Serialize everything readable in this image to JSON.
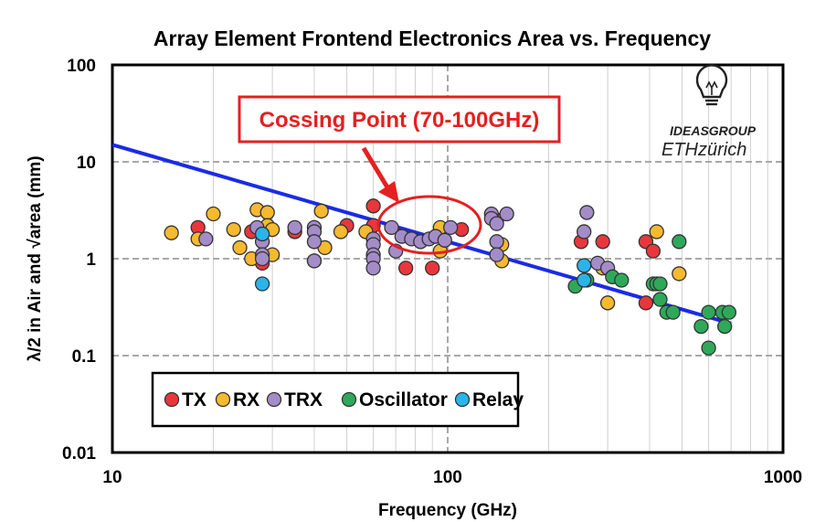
{
  "colors": {
    "TX": "#e8373c",
    "RX": "#f6b92f",
    "TRX": "#a48cc8",
    "Oscillator": "#2fa85a",
    "Relay": "#2ab4ea",
    "trend_line": "#1a2be6",
    "annotation": "#e52020"
  },
  "chart_data": {
    "type": "scatter",
    "title": "Array Element Frontend Electronics Area vs. Frequency",
    "xlabel": "Frequency (GHz)",
    "ylabel": "λ/2 in Air and √area (mm)",
    "x_scale": "log",
    "y_scale": "log",
    "xlim": [
      10,
      1000
    ],
    "ylim": [
      0.01,
      100
    ],
    "x_ticks": [
      10,
      100,
      1000
    ],
    "x_tick_labels": [
      "10",
      "100",
      "1000"
    ],
    "y_ticks": [
      0.01,
      0.1,
      1,
      10,
      100
    ],
    "y_tick_labels": [
      "0.01",
      "0.1",
      "1",
      "10",
      "100"
    ],
    "grid": true,
    "legend_position": "bottom-left",
    "series": [
      {
        "name": "TX",
        "points": [
          [
            18,
            2.1
          ],
          [
            26,
            1.9
          ],
          [
            28,
            1.0
          ],
          [
            28,
            0.9
          ],
          [
            35,
            1.9
          ],
          [
            50,
            2.2
          ],
          [
            60,
            3.5
          ],
          [
            60,
            2.2
          ],
          [
            75,
            0.8
          ],
          [
            90,
            0.8
          ],
          [
            110,
            2.0
          ],
          [
            140,
            1.1
          ],
          [
            140,
            2.5
          ],
          [
            250,
            1.5
          ],
          [
            290,
            1.5
          ],
          [
            390,
            1.5
          ],
          [
            390,
            0.35
          ],
          [
            410,
            1.2
          ]
        ]
      },
      {
        "name": "RX",
        "points": [
          [
            15,
            1.85
          ],
          [
            18,
            1.6
          ],
          [
            20,
            2.9
          ],
          [
            23,
            2.0
          ],
          [
            24,
            1.3
          ],
          [
            26,
            1.0
          ],
          [
            27,
            3.2
          ],
          [
            29,
            3.0
          ],
          [
            29,
            2.2
          ],
          [
            30,
            1.1
          ],
          [
            30,
            2.0
          ],
          [
            40,
            0.95
          ],
          [
            42,
            3.1
          ],
          [
            43,
            1.3
          ],
          [
            48,
            1.9
          ],
          [
            57,
            1.9
          ],
          [
            95,
            2.1
          ],
          [
            95,
            1.2
          ],
          [
            145,
            1.4
          ],
          [
            145,
            0.95
          ],
          [
            290,
            0.8
          ],
          [
            300,
            0.35
          ],
          [
            420,
            1.9
          ],
          [
            490,
            0.7
          ]
        ]
      },
      {
        "name": "TRX",
        "points": [
          [
            19,
            1.6
          ],
          [
            27,
            2.1
          ],
          [
            28,
            1.5
          ],
          [
            28,
            1.1
          ],
          [
            28,
            1.0
          ],
          [
            35,
            2.1
          ],
          [
            40,
            2.1
          ],
          [
            40,
            1.9
          ],
          [
            40,
            1.5
          ],
          [
            40,
            0.95
          ],
          [
            60,
            1.6
          ],
          [
            60,
            1.4
          ],
          [
            60,
            1.1
          ],
          [
            60,
            1.0
          ],
          [
            60,
            0.8
          ],
          [
            68,
            2.1
          ],
          [
            70,
            1.2
          ],
          [
            73,
            1.7
          ],
          [
            78,
            1.6
          ],
          [
            83,
            1.5
          ],
          [
            88,
            1.6
          ],
          [
            92,
            1.7
          ],
          [
            98,
            1.55
          ],
          [
            102,
            2.1
          ],
          [
            135,
            2.9
          ],
          [
            135,
            2.6
          ],
          [
            140,
            2.3
          ],
          [
            140,
            1.5
          ],
          [
            140,
            1.1
          ],
          [
            150,
            2.9
          ],
          [
            260,
            3.0
          ],
          [
            255,
            1.9
          ],
          [
            280,
            0.9
          ],
          [
            300,
            0.8
          ]
        ]
      },
      {
        "name": "Oscillator",
        "points": [
          [
            240,
            0.52
          ],
          [
            260,
            0.6
          ],
          [
            310,
            0.65
          ],
          [
            330,
            0.6
          ],
          [
            410,
            0.55
          ],
          [
            420,
            0.55
          ],
          [
            430,
            0.55
          ],
          [
            430,
            0.38
          ],
          [
            450,
            0.28
          ],
          [
            470,
            0.28
          ],
          [
            490,
            1.5
          ],
          [
            570,
            0.2
          ],
          [
            600,
            0.28
          ],
          [
            600,
            0.12
          ],
          [
            660,
            0.28
          ],
          [
            670,
            0.2
          ],
          [
            690,
            0.28
          ]
        ]
      },
      {
        "name": "Relay",
        "points": [
          [
            28,
            1.8
          ],
          [
            28,
            0.55
          ],
          [
            255,
            0.85
          ],
          [
            255,
            0.6
          ]
        ]
      }
    ],
    "trend_line": {
      "x": [
        10,
        700
      ],
      "y": [
        15,
        0.214
      ]
    },
    "annotation": {
      "text": "Cossing Point (70-100GHz)",
      "target_x": 90,
      "target_y": 1.8
    }
  },
  "logo": {
    "line1": "IDEASGROUP",
    "line2": "ETHzürich"
  }
}
